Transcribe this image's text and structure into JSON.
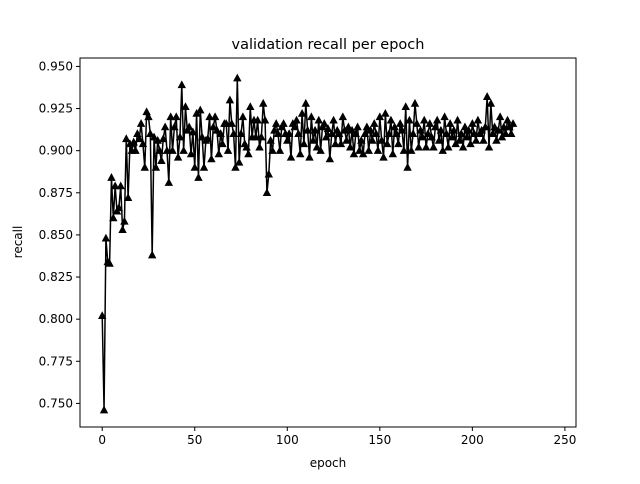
{
  "chart_data": {
    "type": "line",
    "title": "validation recall per epoch",
    "xlabel": "epoch",
    "ylabel": "recall",
    "xlim": [
      -12,
      256
    ],
    "ylim": [
      0.736,
      0.955
    ],
    "xticks": [
      0,
      50,
      100,
      150,
      200,
      250
    ],
    "xtick_labels": [
      "0",
      "50",
      "100",
      "150",
      "200",
      "250"
    ],
    "yticks": [
      0.75,
      0.775,
      0.8,
      0.825,
      0.85,
      0.875,
      0.9,
      0.925,
      0.95
    ],
    "ytick_labels": [
      "0.750",
      "0.775",
      "0.800",
      "0.825",
      "0.850",
      "0.875",
      "0.900",
      "0.925",
      "0.950"
    ],
    "grid": false,
    "legend": "none",
    "marker": "triangle-up",
    "line_color": "#000000",
    "series": [
      {
        "values": [
          0.802,
          0.746,
          0.848,
          0.834,
          0.833,
          0.884,
          0.86,
          0.879,
          0.864,
          0.866,
          0.879,
          0.853,
          0.858,
          0.907,
          0.872,
          0.904,
          0.9,
          0.905,
          0.9,
          0.91,
          0.907,
          0.916,
          0.904,
          0.89,
          0.923,
          0.92,
          0.91,
          0.838,
          0.908,
          0.89,
          0.906,
          0.9,
          0.894,
          0.907,
          0.914,
          0.9,
          0.881,
          0.92,
          0.9,
          0.914,
          0.92,
          0.896,
          0.908,
          0.939,
          0.9,
          0.926,
          0.912,
          0.914,
          0.898,
          0.911,
          0.89,
          0.922,
          0.884,
          0.924,
          0.908,
          0.89,
          0.906,
          0.907,
          0.92,
          0.895,
          0.914,
          0.92,
          0.912,
          0.898,
          0.91,
          0.904,
          0.916,
          0.916,
          0.9,
          0.93,
          0.916,
          0.91,
          0.89,
          0.943,
          0.893,
          0.91,
          0.92,
          0.904,
          0.902,
          0.898,
          0.926,
          0.908,
          0.918,
          0.908,
          0.918,
          0.902,
          0.908,
          0.928,
          0.918,
          0.875,
          0.886,
          0.906,
          0.9,
          0.912,
          0.916,
          0.91,
          0.9,
          0.914,
          0.916,
          0.91,
          0.906,
          0.91,
          0.896,
          0.916,
          0.914,
          0.918,
          0.91,
          0.898,
          0.922,
          0.904,
          0.928,
          0.912,
          0.896,
          0.92,
          0.906,
          0.912,
          0.902,
          0.918,
          0.9,
          0.914,
          0.916,
          0.908,
          0.913,
          0.895,
          0.91,
          0.918,
          0.904,
          0.912,
          0.91,
          0.904,
          0.92,
          0.912,
          0.906,
          0.914,
          0.902,
          0.912,
          0.898,
          0.91,
          0.914,
          0.9,
          0.906,
          0.898,
          0.91,
          0.914,
          0.9,
          0.912,
          0.906,
          0.916,
          0.91,
          0.9,
          0.92,
          0.906,
          0.896,
          0.922,
          0.904,
          0.91,
          0.918,
          0.898,
          0.914,
          0.91,
          0.904,
          0.916,
          0.912,
          0.9,
          0.926,
          0.89,
          0.918,
          0.9,
          0.91,
          0.928,
          0.916,
          0.902,
          0.912,
          0.908,
          0.918,
          0.902,
          0.91,
          0.916,
          0.908,
          0.902,
          0.914,
          0.918,
          0.906,
          0.912,
          0.9,
          0.92,
          0.91,
          0.902,
          0.916,
          0.908,
          0.912,
          0.904,
          0.918,
          0.906,
          0.91,
          0.902,
          0.914,
          0.908,
          0.912,
          0.904,
          0.916,
          0.91,
          0.906,
          0.918,
          0.91,
          0.912,
          0.906,
          0.914,
          0.932,
          0.902,
          0.928,
          0.91,
          0.914,
          0.906,
          0.912,
          0.92,
          0.908,
          0.914,
          0.91,
          0.918,
          0.914,
          0.91,
          0.916
        ]
      }
    ]
  }
}
